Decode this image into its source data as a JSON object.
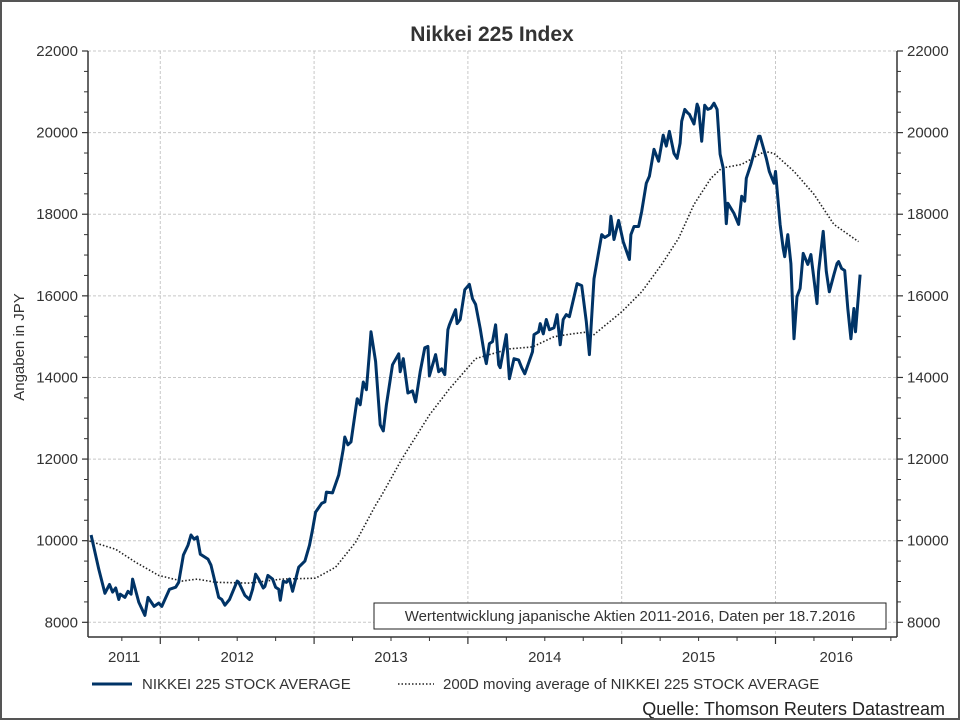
{
  "chart_data": {
    "type": "line",
    "title": "Nikkei 225 Index",
    "ylabel": "Angaben in JPY",
    "xlabel": "",
    "xlim": [
      2011.53,
      2016.79
    ],
    "ylim": [
      7640,
      22000
    ],
    "x_tick_labels": [
      "2011",
      "2012",
      "2013",
      "2014",
      "2015",
      "2016"
    ],
    "y_ticks": [
      8000,
      10000,
      12000,
      14000,
      16000,
      18000,
      20000,
      22000
    ],
    "y_tick_labels": [
      "8000",
      "10000",
      "12000",
      "14000",
      "16000",
      "18000",
      "20000",
      "22000"
    ],
    "grid": true,
    "legend_position": "bottom",
    "annotation": "Wertentwicklung japanische Aktien 2011-2016, Daten per 18.7.2016",
    "source": "Quelle: Thomson Reuters Datastream",
    "colors": {
      "main": "#003366",
      "ma": "#222222",
      "grid": "#c8c8c8",
      "axis": "#333333"
    },
    "series": [
      {
        "name": "NIKKEI 225 STOCK AVERAGE",
        "style": "solid",
        "points": [
          [
            2011.55,
            10140
          ],
          [
            2011.6,
            9300
          ],
          [
            2011.64,
            8710
          ],
          [
            2011.67,
            8930
          ],
          [
            2011.69,
            8740
          ],
          [
            2011.71,
            8840
          ],
          [
            2011.73,
            8560
          ],
          [
            2011.74,
            8690
          ],
          [
            2011.77,
            8610
          ],
          [
            2011.79,
            8760
          ],
          [
            2011.81,
            8690
          ],
          [
            2011.82,
            9060
          ],
          [
            2011.86,
            8490
          ],
          [
            2011.9,
            8170
          ],
          [
            2011.92,
            8610
          ],
          [
            2011.96,
            8390
          ],
          [
            2011.99,
            8470
          ],
          [
            2012.01,
            8390
          ],
          [
            2012.06,
            8810
          ],
          [
            2012.1,
            8860
          ],
          [
            2012.12,
            8980
          ],
          [
            2012.15,
            9650
          ],
          [
            2012.18,
            9890
          ],
          [
            2012.2,
            10140
          ],
          [
            2012.22,
            10040
          ],
          [
            2012.24,
            10090
          ],
          [
            2012.26,
            9670
          ],
          [
            2012.31,
            9550
          ],
          [
            2012.33,
            9400
          ],
          [
            2012.38,
            8610
          ],
          [
            2012.4,
            8560
          ],
          [
            2012.42,
            8420
          ],
          [
            2012.45,
            8560
          ],
          [
            2012.5,
            9010
          ],
          [
            2012.51,
            8980
          ],
          [
            2012.55,
            8660
          ],
          [
            2012.58,
            8560
          ],
          [
            2012.6,
            8810
          ],
          [
            2012.62,
            9180
          ],
          [
            2012.64,
            9060
          ],
          [
            2012.67,
            8840
          ],
          [
            2012.68,
            8880
          ],
          [
            2012.7,
            9150
          ],
          [
            2012.73,
            9060
          ],
          [
            2012.75,
            8860
          ],
          [
            2012.77,
            8810
          ],
          [
            2012.78,
            8540
          ],
          [
            2012.8,
            9010
          ],
          [
            2012.82,
            8980
          ],
          [
            2012.84,
            9060
          ],
          [
            2012.86,
            8760
          ],
          [
            2012.9,
            9350
          ],
          [
            2012.94,
            9500
          ],
          [
            2012.97,
            9890
          ],
          [
            2012.99,
            10280
          ],
          [
            2013.01,
            10700
          ],
          [
            2013.05,
            10920
          ],
          [
            2013.07,
            10950
          ],
          [
            2013.08,
            11190
          ],
          [
            2013.12,
            11170
          ],
          [
            2013.16,
            11610
          ],
          [
            2013.19,
            12250
          ],
          [
            2013.2,
            12540
          ],
          [
            2013.22,
            12350
          ],
          [
            2013.24,
            12420
          ],
          [
            2013.28,
            13480
          ],
          [
            2013.3,
            13330
          ],
          [
            2013.32,
            13890
          ],
          [
            2013.34,
            13700
          ],
          [
            2013.36,
            14630
          ],
          [
            2013.37,
            15120
          ],
          [
            2013.4,
            14390
          ],
          [
            2013.43,
            12840
          ],
          [
            2013.45,
            12690
          ],
          [
            2013.47,
            13330
          ],
          [
            2013.51,
            14310
          ],
          [
            2013.55,
            14580
          ],
          [
            2013.56,
            14140
          ],
          [
            2013.58,
            14460
          ],
          [
            2013.61,
            13620
          ],
          [
            2013.64,
            13670
          ],
          [
            2013.66,
            13400
          ],
          [
            2013.69,
            14140
          ],
          [
            2013.72,
            14730
          ],
          [
            2013.74,
            14760
          ],
          [
            2013.75,
            14040
          ],
          [
            2013.79,
            14560
          ],
          [
            2013.81,
            14140
          ],
          [
            2013.83,
            14210
          ],
          [
            2013.85,
            14070
          ],
          [
            2013.87,
            15170
          ],
          [
            2013.88,
            15290
          ],
          [
            2013.92,
            15660
          ],
          [
            2013.93,
            15320
          ],
          [
            2013.95,
            15420
          ],
          [
            2013.98,
            16150
          ],
          [
            2014.01,
            16280
          ],
          [
            2014.03,
            15930
          ],
          [
            2014.05,
            15790
          ],
          [
            2014.08,
            15200
          ],
          [
            2014.11,
            14510
          ],
          [
            2014.12,
            14340
          ],
          [
            2014.14,
            14830
          ],
          [
            2014.16,
            14880
          ],
          [
            2014.18,
            15290
          ],
          [
            2014.2,
            14310
          ],
          [
            2014.21,
            14240
          ],
          [
            2014.25,
            15050
          ],
          [
            2014.27,
            13970
          ],
          [
            2014.3,
            14460
          ],
          [
            2014.33,
            14430
          ],
          [
            2014.35,
            14240
          ],
          [
            2014.37,
            14090
          ],
          [
            2014.4,
            14410
          ],
          [
            2014.42,
            14630
          ],
          [
            2014.43,
            15050
          ],
          [
            2014.46,
            15120
          ],
          [
            2014.47,
            15320
          ],
          [
            2014.49,
            15070
          ],
          [
            2014.51,
            15420
          ],
          [
            2014.53,
            15170
          ],
          [
            2014.56,
            15220
          ],
          [
            2014.58,
            15540
          ],
          [
            2014.6,
            14800
          ],
          [
            2014.62,
            15420
          ],
          [
            2014.64,
            15540
          ],
          [
            2014.66,
            15490
          ],
          [
            2014.71,
            16300
          ],
          [
            2014.74,
            16250
          ],
          [
            2014.77,
            15370
          ],
          [
            2014.79,
            14560
          ],
          [
            2014.82,
            16420
          ],
          [
            2014.87,
            17500
          ],
          [
            2014.89,
            17430
          ],
          [
            2014.92,
            17500
          ],
          [
            2014.93,
            17950
          ],
          [
            2014.95,
            17380
          ],
          [
            2014.98,
            17850
          ],
          [
            2015.01,
            17330
          ],
          [
            2015.05,
            16890
          ],
          [
            2015.06,
            17500
          ],
          [
            2015.08,
            17700
          ],
          [
            2015.11,
            17700
          ],
          [
            2015.13,
            18070
          ],
          [
            2015.16,
            18760
          ],
          [
            2015.18,
            18930
          ],
          [
            2015.21,
            19590
          ],
          [
            2015.24,
            19300
          ],
          [
            2015.27,
            19940
          ],
          [
            2015.29,
            19670
          ],
          [
            2015.31,
            20030
          ],
          [
            2015.34,
            19490
          ],
          [
            2015.36,
            19370
          ],
          [
            2015.38,
            19740
          ],
          [
            2015.39,
            20280
          ],
          [
            2015.41,
            20570
          ],
          [
            2015.43,
            20480
          ],
          [
            2015.44,
            20450
          ],
          [
            2015.47,
            20210
          ],
          [
            2015.49,
            20700
          ],
          [
            2015.5,
            20600
          ],
          [
            2015.52,
            19790
          ],
          [
            2015.54,
            20670
          ],
          [
            2015.56,
            20570
          ],
          [
            2015.58,
            20600
          ],
          [
            2015.6,
            20720
          ],
          [
            2015.62,
            20570
          ],
          [
            2015.64,
            19470
          ],
          [
            2015.66,
            19130
          ],
          [
            2015.68,
            17770
          ],
          [
            2015.69,
            18270
          ],
          [
            2015.73,
            18020
          ],
          [
            2015.76,
            17750
          ],
          [
            2015.78,
            18440
          ],
          [
            2015.8,
            18320
          ],
          [
            2015.81,
            18880
          ],
          [
            2015.84,
            19220
          ],
          [
            2015.89,
            19910
          ],
          [
            2015.9,
            19910
          ],
          [
            2015.94,
            19370
          ],
          [
            2015.96,
            19050
          ],
          [
            2015.99,
            18760
          ],
          [
            2016.0,
            19050
          ],
          [
            2016.03,
            17750
          ],
          [
            2016.05,
            17160
          ],
          [
            2016.06,
            16960
          ],
          [
            2016.08,
            17500
          ],
          [
            2016.1,
            16790
          ],
          [
            2016.12,
            14950
          ],
          [
            2016.14,
            15980
          ],
          [
            2016.16,
            16180
          ],
          [
            2016.18,
            17040
          ],
          [
            2016.21,
            16770
          ],
          [
            2016.23,
            17010
          ],
          [
            2016.27,
            15810
          ],
          [
            2016.28,
            16600
          ],
          [
            2016.31,
            17580
          ],
          [
            2016.33,
            16600
          ],
          [
            2016.35,
            16100
          ],
          [
            2016.38,
            16520
          ],
          [
            2016.4,
            16790
          ],
          [
            2016.41,
            16840
          ],
          [
            2016.43,
            16670
          ],
          [
            2016.45,
            16620
          ],
          [
            2016.47,
            15690
          ],
          [
            2016.49,
            14950
          ],
          [
            2016.51,
            15690
          ],
          [
            2016.52,
            15120
          ],
          [
            2016.55,
            16520
          ]
        ]
      },
      {
        "name": "200D moving average of NIKKEI 225 STOCK AVERAGE",
        "style": "dotted",
        "points": [
          [
            2011.54,
            9990
          ],
          [
            2011.71,
            9790
          ],
          [
            2011.84,
            9470
          ],
          [
            2011.99,
            9150
          ],
          [
            2012.14,
            9010
          ],
          [
            2012.24,
            9060
          ],
          [
            2012.36,
            8980
          ],
          [
            2012.58,
            8960
          ],
          [
            2012.79,
            9060
          ],
          [
            2013.01,
            9080
          ],
          [
            2013.14,
            9350
          ],
          [
            2013.27,
            9960
          ],
          [
            2013.4,
            10870
          ],
          [
            2013.44,
            11120
          ],
          [
            2013.57,
            12000
          ],
          [
            2013.75,
            13080
          ],
          [
            2013.88,
            13720
          ],
          [
            2014.05,
            14460
          ],
          [
            2014.14,
            14560
          ],
          [
            2014.27,
            14700
          ],
          [
            2014.42,
            14750
          ],
          [
            2014.56,
            15000
          ],
          [
            2014.68,
            15070
          ],
          [
            2014.79,
            15120
          ],
          [
            2014.82,
            15050
          ],
          [
            2015.0,
            15610
          ],
          [
            2015.13,
            16100
          ],
          [
            2015.26,
            16770
          ],
          [
            2015.37,
            17410
          ],
          [
            2015.47,
            18240
          ],
          [
            2015.58,
            18880
          ],
          [
            2015.65,
            19130
          ],
          [
            2015.78,
            19220
          ],
          [
            2015.93,
            19540
          ],
          [
            2015.99,
            19490
          ],
          [
            2016.12,
            19050
          ],
          [
            2016.25,
            18490
          ],
          [
            2016.38,
            17750
          ],
          [
            2016.54,
            17330
          ]
        ]
      }
    ]
  }
}
